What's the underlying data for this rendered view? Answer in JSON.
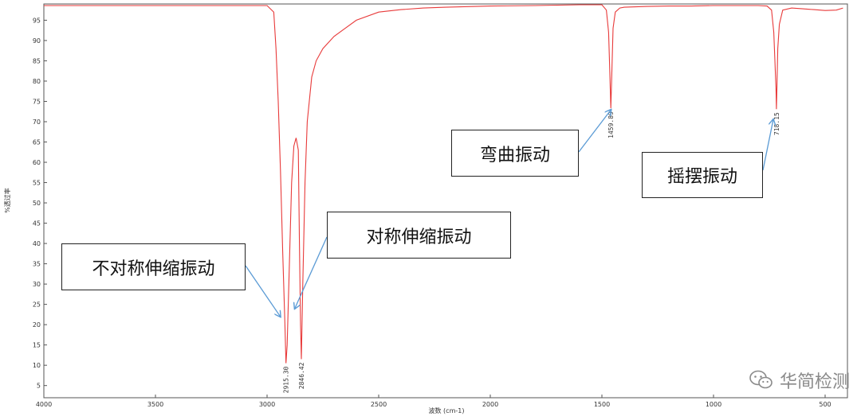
{
  "chart_data": {
    "type": "line",
    "xlabel": "波数 (cm-1)",
    "ylabel": "%透过率",
    "xlim": [
      4000,
      400
    ],
    "ylim": [
      2,
      99
    ],
    "x_ticks": [
      4000,
      3500,
      3000,
      2500,
      2000,
      1500,
      1000,
      500
    ],
    "y_ticks": [
      5,
      10,
      15,
      20,
      25,
      30,
      35,
      40,
      45,
      50,
      55,
      60,
      65,
      70,
      75,
      80,
      85,
      90,
      95
    ],
    "grid": false,
    "series": [
      {
        "color": "#e83a3a",
        "x": [
          4000,
          3000,
          2970,
          2960,
          2950,
          2940,
          2930,
          2920,
          2915.3,
          2910,
          2900,
          2890,
          2880,
          2870,
          2860,
          2855,
          2850,
          2846.42,
          2840,
          2830,
          2820,
          2800,
          2780,
          2750,
          2700,
          2650,
          2600,
          2500,
          2400,
          2300,
          2200,
          2000,
          1800,
          1700,
          1600,
          1500,
          1480,
          1470,
          1465,
          1459.89,
          1455,
          1450,
          1440,
          1420,
          1400,
          1300,
          1200,
          1100,
          1000,
          900,
          800,
          760,
          740,
          730,
          725,
          720,
          718.15,
          716,
          712,
          705,
          690,
          650,
          600,
          550,
          500,
          450,
          420
        ],
        "y": [
          98.6,
          98.6,
          97,
          88,
          75,
          58,
          38,
          20,
          10.5,
          15,
          35,
          55,
          64,
          66,
          63,
          40,
          20,
          11.5,
          30,
          55,
          70,
          81,
          85,
          88,
          91,
          93,
          95,
          97,
          97.6,
          98,
          98.2,
          98.5,
          98.6,
          98.7,
          98.8,
          98.8,
          97.5,
          92,
          83,
          73.3,
          83,
          93,
          97,
          98,
          98.2,
          98.4,
          98.5,
          98.5,
          98.6,
          98.6,
          98.6,
          98.5,
          97.5,
          92,
          85,
          78,
          73.1,
          78,
          88,
          94,
          97.5,
          98,
          97.8,
          97.6,
          97.4,
          97.5,
          98
        ]
      }
    ],
    "peaks": [
      {
        "x": 2915.3,
        "y": 10.5,
        "label": "2915.30"
      },
      {
        "x": 2846.42,
        "y": 11.5,
        "label": "2846.42"
      },
      {
        "x": 1459.89,
        "y": 73.3,
        "label": "1459.89"
      },
      {
        "x": 718.15,
        "y": 73.1,
        "label": "718.15"
      }
    ],
    "annotations": [
      {
        "text": "不对称伸缩振动",
        "target_x": 2930,
        "target_y": 22
      },
      {
        "text": "对称伸缩振动",
        "target_x": 2840,
        "target_y": 24
      },
      {
        "text": "弯曲振动",
        "target_x": 1459.89,
        "target_y": 73.3
      },
      {
        "text": "摇摆振动",
        "target_x": 718.15,
        "target_y": 70.5
      }
    ]
  },
  "watermark": {
    "text": "华简检测",
    "icon": "wechat-icon"
  },
  "colors": {
    "spectrum": "#e83a3a",
    "arrow": "#5b9bd5",
    "axis": "#333333"
  }
}
